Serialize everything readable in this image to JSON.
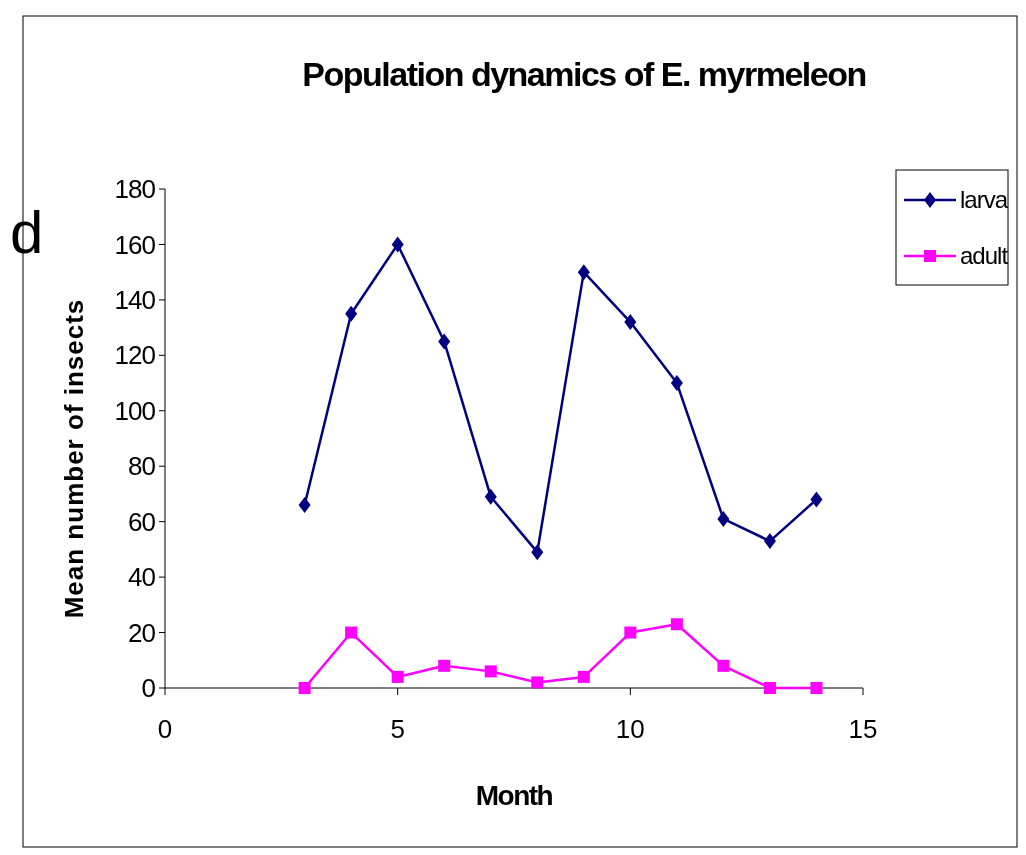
{
  "chart_data": {
    "type": "line",
    "title": "Population dynamics of E. myrmeleon",
    "xlabel": "Month",
    "ylabel": "Mean number of insects",
    "annotations": [
      "d"
    ],
    "xlim": [
      0,
      15
    ],
    "xticks": [
      0,
      5,
      10,
      15
    ],
    "ylim": [
      0,
      180
    ],
    "yticks": [
      0,
      20,
      40,
      60,
      80,
      100,
      120,
      140,
      160,
      180
    ],
    "grid": false,
    "legend": "right",
    "x": [
      3,
      4,
      5,
      6,
      7,
      8,
      9,
      10,
      11,
      12,
      13,
      14
    ],
    "series": [
      {
        "name": "larva",
        "color": "#000080",
        "marker": "diamond",
        "values": [
          66,
          135,
          160,
          125,
          69,
          49,
          150,
          132,
          110,
          61,
          53,
          68
        ]
      },
      {
        "name": "adult",
        "color": "#ff00ff",
        "marker": "square",
        "values": [
          0,
          20,
          4,
          8,
          6,
          2,
          4,
          20,
          23,
          8,
          0,
          0
        ]
      }
    ]
  }
}
